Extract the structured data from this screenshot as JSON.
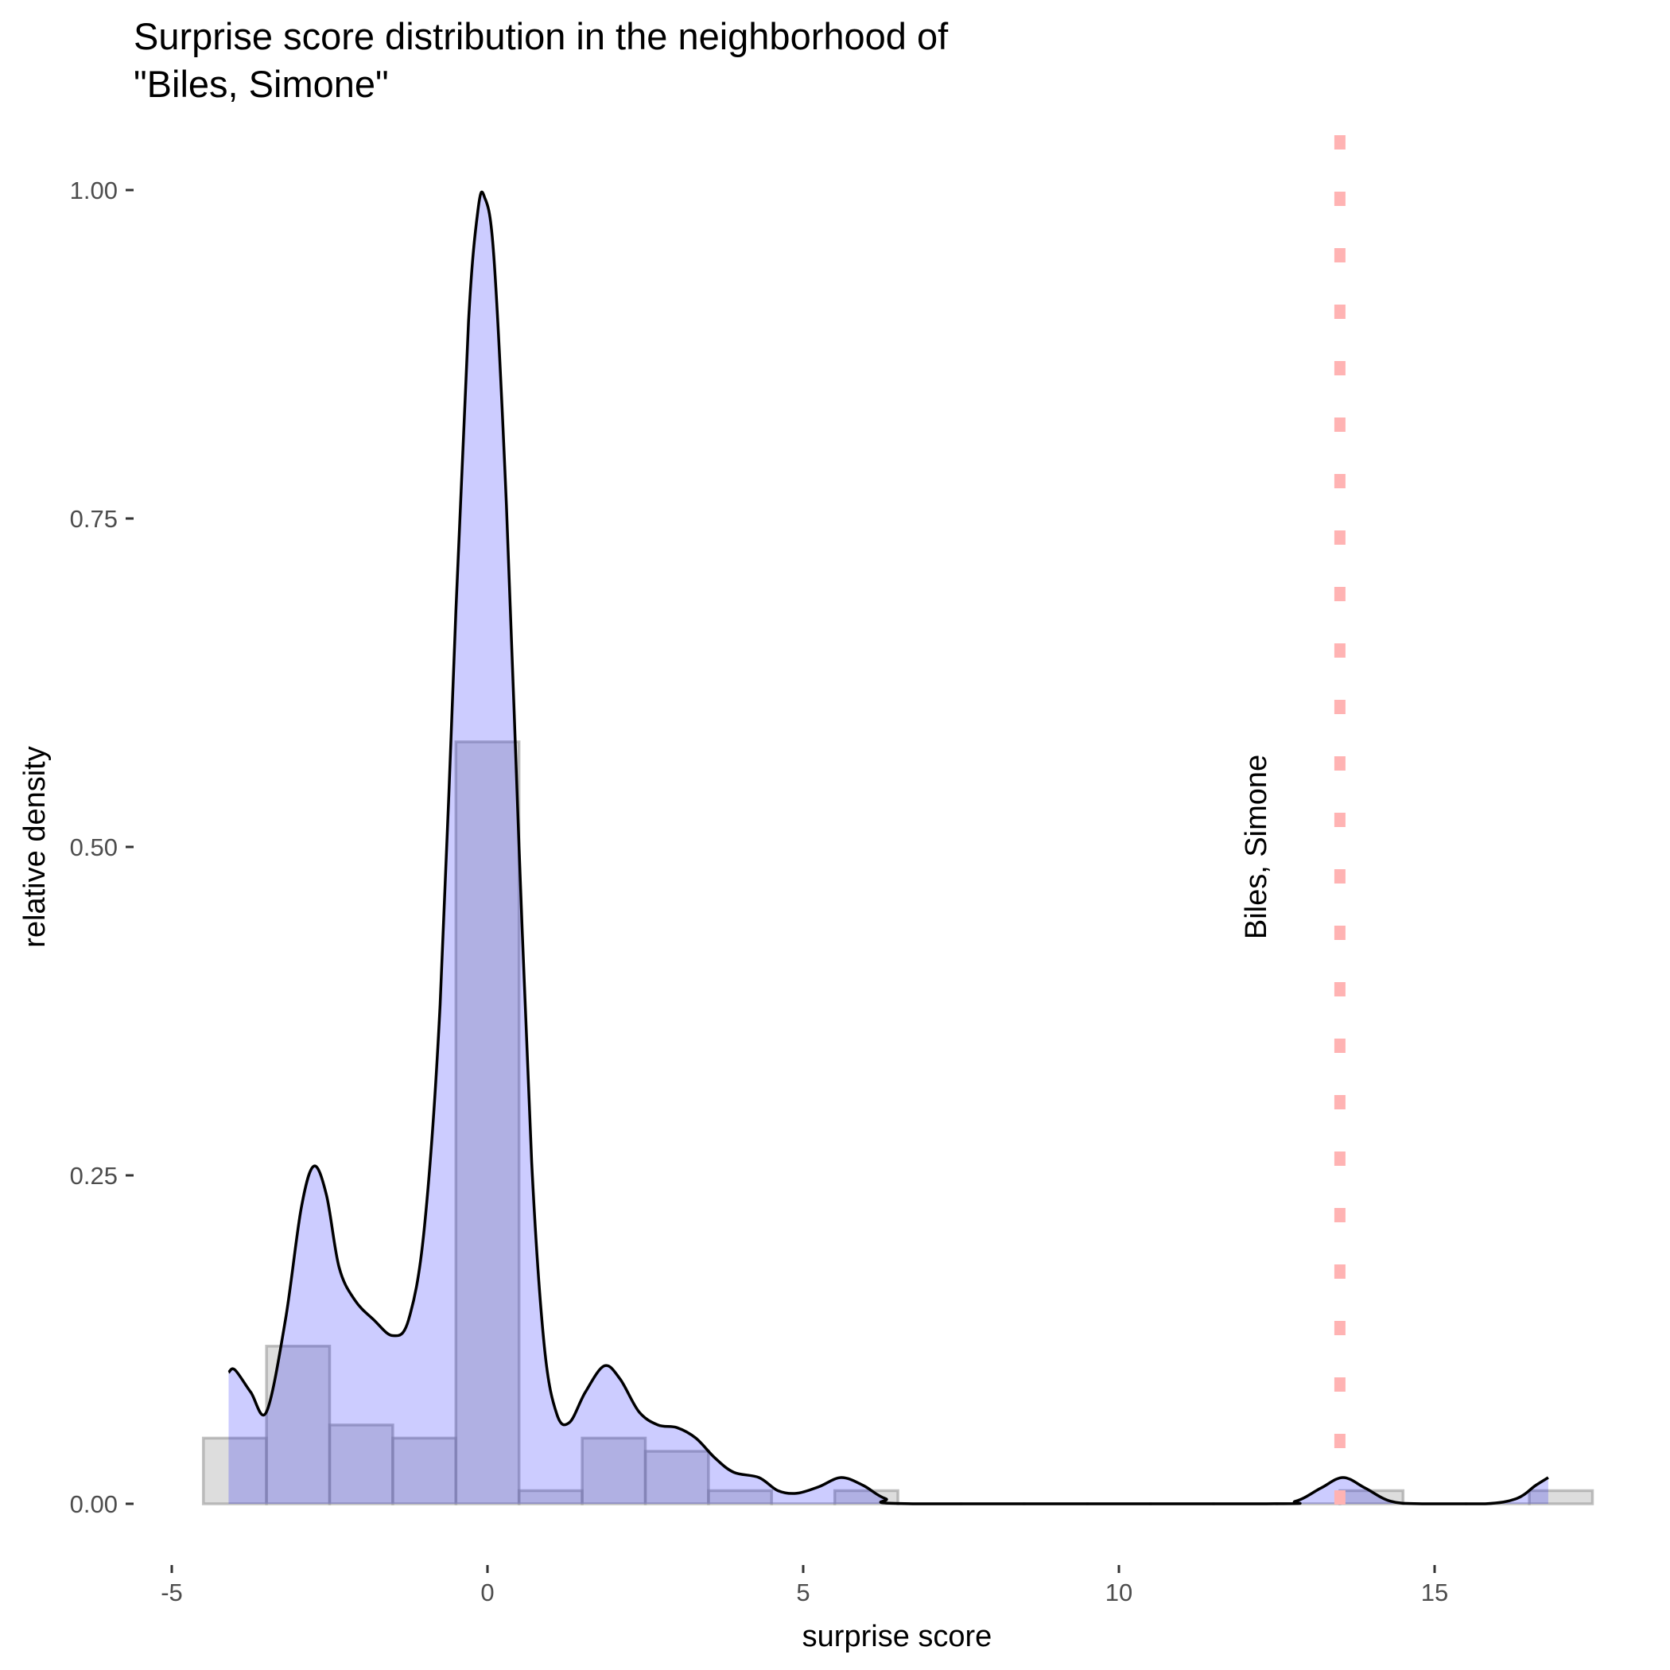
{
  "chart_data": {
    "type": "histogram+density",
    "title": [
      "Surprise score distribution in the neighborhood of",
      "\"Biles, Simone\""
    ],
    "xlabel": "surprise score",
    "ylabel": "relative density",
    "xlim": [
      -5.2,
      17.8
    ],
    "ylim": [
      -0.05,
      1.05
    ],
    "x_ticks": [
      -5,
      0,
      5,
      10,
      15
    ],
    "x_tick_labels": [
      "-5",
      "0",
      "5",
      "10",
      "15"
    ],
    "y_ticks": [
      0,
      0.25,
      0.5,
      0.75,
      1.0
    ],
    "y_tick_labels": [
      "0.00",
      "0.25",
      "0.50",
      "0.75",
      "1.00"
    ],
    "grid": false,
    "histogram": {
      "bin_width": 1,
      "bin_centers": [
        -4,
        -3,
        -2,
        -1,
        0,
        1,
        2,
        3,
        4,
        5,
        6,
        7,
        8,
        9,
        10,
        11,
        12,
        13,
        14,
        15,
        16,
        17
      ],
      "values": [
        0.05,
        0.12,
        0.06,
        0.05,
        0.58,
        0.01,
        0.05,
        0.04,
        0.01,
        0,
        0.01,
        0,
        0,
        0,
        0,
        0,
        0,
        0,
        0.01,
        0,
        0,
        0.01
      ],
      "fill": "#b3b3b3",
      "stroke": "#999999"
    },
    "density": {
      "x": [
        -4.1,
        -4.0,
        -3.75,
        -3.5,
        -3.2,
        -2.95,
        -2.75,
        -2.55,
        -2.35,
        -2.1,
        -1.8,
        -1.5,
        -1.25,
        -1.0,
        -0.75,
        -0.5,
        -0.3,
        -0.15,
        -0.05,
        0.1,
        0.3,
        0.5,
        0.7,
        0.9,
        1.1,
        1.3,
        1.55,
        1.85,
        2.1,
        2.4,
        2.7,
        3.0,
        3.3,
        3.6,
        3.9,
        4.3,
        4.6,
        4.9,
        5.25,
        5.6,
        5.95,
        6.3,
        6.8,
        12.3,
        12.8,
        13.2,
        13.55,
        13.9,
        14.3,
        14.8,
        15.8,
        16.3,
        16.6,
        16.8
      ],
      "y": [
        0.1,
        0.102,
        0.085,
        0.07,
        0.14,
        0.225,
        0.257,
        0.235,
        0.18,
        0.155,
        0.14,
        0.128,
        0.14,
        0.21,
        0.38,
        0.68,
        0.9,
        0.985,
        0.995,
        0.95,
        0.76,
        0.5,
        0.26,
        0.12,
        0.068,
        0.062,
        0.085,
        0.105,
        0.095,
        0.07,
        0.06,
        0.058,
        0.05,
        0.035,
        0.024,
        0.02,
        0.01,
        0.008,
        0.013,
        0.02,
        0.014,
        0.004,
        0,
        0,
        0.002,
        0.012,
        0.02,
        0.012,
        0.002,
        0,
        0,
        0.004,
        0.014,
        0.02
      ],
      "fill": "#0000ff",
      "fill_opacity": 0.2,
      "line_color": "#000000"
    },
    "vline": {
      "x": 13.5,
      "color": "#ffb3b3",
      "style": "dotted",
      "label": "Biles, Simone"
    }
  }
}
